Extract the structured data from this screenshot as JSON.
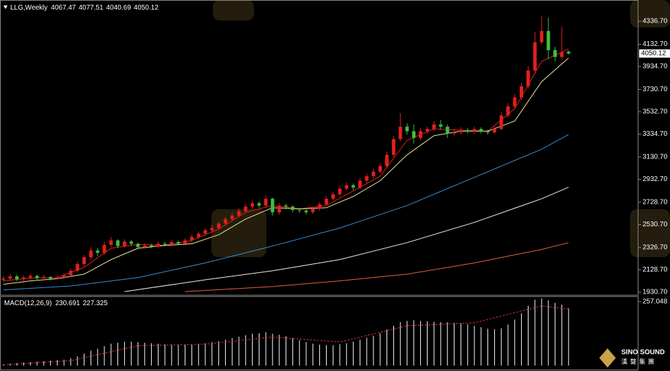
{
  "chart_data": [
    {
      "type": "candlestick",
      "title": "LLG,Weekly",
      "up_color": "#e3201c",
      "down_color": "#3fbf3f",
      "ohlc": [
        [
          2040,
          2075,
          2020,
          2050
        ],
        [
          2050,
          2090,
          2035,
          2070
        ],
        [
          2070,
          2085,
          2030,
          2045
        ],
        [
          2045,
          2080,
          2030,
          2060
        ],
        [
          2060,
          2095,
          2045,
          2075
        ],
        [
          2075,
          2085,
          2040,
          2055
        ],
        [
          2055,
          2085,
          2040,
          2065
        ],
        [
          2065,
          2075,
          2035,
          2050
        ],
        [
          2050,
          2080,
          2040,
          2060
        ],
        [
          2060,
          2100,
          2045,
          2080
        ],
        [
          2080,
          2140,
          2065,
          2120
        ],
        [
          2120,
          2205,
          2105,
          2180
        ],
        [
          2180,
          2260,
          2160,
          2240
        ],
        [
          2240,
          2330,
          2220,
          2300
        ],
        [
          2300,
          2320,
          2250,
          2280
        ],
        [
          2280,
          2380,
          2260,
          2350
        ],
        [
          2350,
          2420,
          2330,
          2390
        ],
        [
          2390,
          2400,
          2320,
          2340
        ],
        [
          2340,
          2400,
          2325,
          2380
        ],
        [
          2380,
          2395,
          2340,
          2360
        ],
        [
          2360,
          2370,
          2310,
          2330
        ],
        [
          2330,
          2365,
          2315,
          2345
        ],
        [
          2345,
          2360,
          2320,
          2335
        ],
        [
          2335,
          2380,
          2320,
          2360
        ],
        [
          2360,
          2375,
          2335,
          2350
        ],
        [
          2350,
          2395,
          2335,
          2375
        ],
        [
          2375,
          2390,
          2345,
          2360
        ],
        [
          2360,
          2410,
          2345,
          2390
        ],
        [
          2390,
          2440,
          2375,
          2420
        ],
        [
          2420,
          2470,
          2405,
          2450
        ],
        [
          2450,
          2500,
          2435,
          2480
        ],
        [
          2480,
          2525,
          2460,
          2500
        ],
        [
          2500,
          2560,
          2485,
          2540
        ],
        [
          2540,
          2600,
          2520,
          2580
        ],
        [
          2580,
          2635,
          2565,
          2610
        ],
        [
          2610,
          2675,
          2595,
          2650
        ],
        [
          2650,
          2715,
          2635,
          2690
        ],
        [
          2690,
          2745,
          2670,
          2720
        ],
        [
          2720,
          2735,
          2680,
          2700
        ],
        [
          2700,
          2790,
          2685,
          2760
        ],
        [
          2760,
          2770,
          2610,
          2640
        ],
        [
          2640,
          2720,
          2620,
          2700
        ],
        [
          2700,
          2715,
          2665,
          2690
        ],
        [
          2690,
          2700,
          2640,
          2660
        ],
        [
          2660,
          2680,
          2635,
          2655
        ],
        [
          2655,
          2670,
          2620,
          2640
        ],
        [
          2640,
          2690,
          2625,
          2670
        ],
        [
          2670,
          2730,
          2655,
          2710
        ],
        [
          2710,
          2785,
          2695,
          2760
        ],
        [
          2760,
          2825,
          2745,
          2800
        ],
        [
          2800,
          2875,
          2780,
          2850
        ],
        [
          2850,
          2905,
          2830,
          2880
        ],
        [
          2880,
          2895,
          2835,
          2860
        ],
        [
          2860,
          2945,
          2845,
          2920
        ],
        [
          2920,
          2985,
          2900,
          2960
        ],
        [
          2960,
          3025,
          2940,
          3000
        ],
        [
          3000,
          3075,
          2985,
          3050
        ],
        [
          3050,
          3180,
          3030,
          3150
        ],
        [
          3150,
          3320,
          3130,
          3290
        ],
        [
          3290,
          3520,
          3270,
          3400
        ],
        [
          3400,
          3430,
          3330,
          3360
        ],
        [
          3360,
          3420,
          3250,
          3300
        ],
        [
          3300,
          3390,
          3280,
          3360
        ],
        [
          3360,
          3400,
          3340,
          3380
        ],
        [
          3380,
          3450,
          3360,
          3420
        ],
        [
          3420,
          3460,
          3380,
          3400
        ],
        [
          3400,
          3420,
          3300,
          3340
        ],
        [
          3340,
          3380,
          3320,
          3350
        ],
        [
          3350,
          3395,
          3330,
          3370
        ],
        [
          3370,
          3390,
          3340,
          3360
        ],
        [
          3360,
          3400,
          3340,
          3380
        ],
        [
          3380,
          3395,
          3340,
          3360
        ],
        [
          3360,
          3375,
          3330,
          3350
        ],
        [
          3350,
          3400,
          3335,
          3380
        ],
        [
          3380,
          3530,
          3370,
          3500
        ],
        [
          3500,
          3610,
          3480,
          3580
        ],
        [
          3580,
          3690,
          3560,
          3660
        ],
        [
          3660,
          3790,
          3640,
          3760
        ],
        [
          3760,
          3940,
          3740,
          3900
        ],
        [
          3900,
          4240,
          3880,
          4150
        ],
        [
          4150,
          4380,
          4130,
          4250
        ],
        [
          4250,
          4370,
          4000,
          4080
        ],
        [
          4080,
          4110,
          3980,
          4020
        ],
        [
          4020,
          4290,
          4000,
          4060
        ],
        [
          4067.47,
          4077.51,
          4040.69,
          4050.12
        ]
      ],
      "lines": [
        {
          "color": "#e3201c",
          "x": [
            0,
            4,
            8,
            12,
            16,
            20,
            24,
            28,
            32,
            36,
            40,
            44,
            48,
            52,
            56,
            60,
            64,
            68,
            72,
            76,
            80,
            84
          ],
          "values": [
            2030,
            2055,
            2060,
            2150,
            2320,
            2355,
            2345,
            2390,
            2490,
            2640,
            2700,
            2670,
            2700,
            2830,
            2960,
            3280,
            3380,
            3370,
            3360,
            3560,
            3980,
            4090
          ]
        },
        {
          "color": "#f2eaa0",
          "x": [
            0,
            4,
            8,
            12,
            16,
            20,
            24,
            28,
            32,
            36,
            40,
            44,
            48,
            52,
            56,
            60,
            64,
            68,
            72,
            76,
            80,
            84
          ],
          "values": [
            2000,
            2030,
            2050,
            2090,
            2220,
            2320,
            2345,
            2360,
            2440,
            2580,
            2680,
            2670,
            2680,
            2780,
            2920,
            3150,
            3320,
            3360,
            3360,
            3450,
            3800,
            4010
          ]
        },
        {
          "color": "#3a8fd8",
          "x": [
            0,
            10,
            20,
            30,
            40,
            50,
            60,
            70,
            80,
            84
          ],
          "values": [
            1950,
            1985,
            2060,
            2190,
            2340,
            2500,
            2700,
            2950,
            3200,
            3330
          ]
        },
        {
          "color": "#f4f4f4",
          "x": [
            18,
            30,
            40,
            50,
            60,
            70,
            80,
            84
          ],
          "values": [
            1935,
            2040,
            2120,
            2220,
            2370,
            2550,
            2760,
            2862
          ]
        },
        {
          "color": "#e8643c",
          "x": [
            27,
            40,
            50,
            60,
            70,
            80,
            84
          ],
          "values": [
            1935,
            1980,
            2030,
            2090,
            2190,
            2310,
            2370
          ]
        }
      ],
      "ylim": [
        1906,
        4525.5
      ],
      "yticks": [
        {
          "value": 1930.7,
          "label": "1930.70"
        },
        {
          "value": 2128.7,
          "label": "2128.70"
        },
        {
          "value": 2326.7,
          "label": "2326.70"
        },
        {
          "value": 2530.7,
          "label": "2530.70"
        },
        {
          "value": 2728.7,
          "label": "2728.70"
        },
        {
          "value": 2932.7,
          "label": "2932.70"
        },
        {
          "value": 3130.7,
          "label": "3130.70"
        },
        {
          "value": 3334.7,
          "label": "3334.70"
        },
        {
          "value": 3532.7,
          "label": "3532.70"
        },
        {
          "value": 3730.7,
          "label": "3730.70"
        },
        {
          "value": 3934.7,
          "label": "3934.70"
        },
        {
          "value": 4132.7,
          "label": "4132.70"
        },
        {
          "value": 4336.7,
          "label": "4336.70"
        }
      ]
    },
    {
      "type": "macd",
      "title": "MACD(12,26,9)",
      "ylim": [
        -19,
        276
      ],
      "yticks": [
        257.048
      ],
      "histogram": {
        "color": "#ffffff",
        "values": [
          5,
          8,
          10,
          12,
          14,
          16,
          18,
          20,
          22,
          24,
          30,
          38,
          48,
          60,
          68,
          78,
          88,
          92,
          96,
          96,
          94,
          92,
          90,
          88,
          86,
          85,
          84,
          84,
          86,
          88,
          90,
          94,
          98,
          104,
          110,
          116,
          122,
          128,
          130,
          134,
          128,
          124,
          118,
          110,
          102,
          94,
          88,
          84,
          82,
          82,
          86,
          90,
          96,
          104,
          112,
          120,
          130,
          145,
          160,
          175,
          180,
          182,
          180,
          178,
          176,
          175,
          174,
          172,
          170,
          166,
          160,
          154,
          148,
          146,
          150,
          165,
          185,
          210,
          240,
          265,
          270,
          262,
          252,
          245,
          230.691
        ]
      },
      "signal": {
        "color": "#e03030",
        "x": [
          0,
          10,
          20,
          30,
          40,
          50,
          60,
          70,
          80,
          84
        ],
        "values": [
          3,
          20,
          80,
          86,
          115,
          95,
          160,
          172,
          240,
          227.325
        ]
      }
    }
  ],
  "watermark": {
    "en": "SINO SOUND",
    "cn": "漢聲集團"
  }
}
